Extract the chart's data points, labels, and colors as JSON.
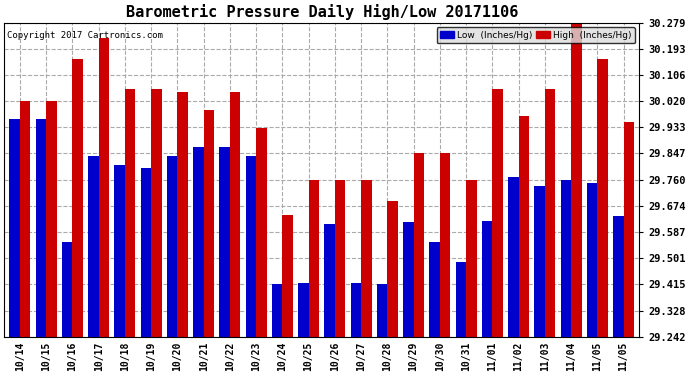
{
  "title": "Barometric Pressure Daily High/Low 20171106",
  "copyright": "Copyright 2017 Cartronics.com",
  "background_color": "#ffffff",
  "plot_bg_color": "#ffffff",
  "bar_color_low": "#0000cc",
  "bar_color_high": "#cc0000",
  "ymin": 29.242,
  "ymax": 30.279,
  "yticks": [
    29.242,
    29.328,
    29.415,
    29.501,
    29.587,
    29.674,
    29.76,
    29.847,
    29.933,
    30.02,
    30.106,
    30.193,
    30.279
  ],
  "dates": [
    "10/14",
    "10/15",
    "10/16",
    "10/17",
    "10/18",
    "10/19",
    "10/20",
    "10/21",
    "10/22",
    "10/23",
    "10/24",
    "10/25",
    "10/26",
    "10/27",
    "10/28",
    "10/29",
    "10/30",
    "10/31",
    "11/01",
    "11/02",
    "11/03",
    "11/04",
    "11/05",
    "11/05"
  ],
  "low_values": [
    29.96,
    29.96,
    29.556,
    29.84,
    29.81,
    29.8,
    29.84,
    29.87,
    29.87,
    29.84,
    29.415,
    29.42,
    29.615,
    29.42,
    29.415,
    29.62,
    29.556,
    29.49,
    29.625,
    29.77,
    29.74,
    29.76,
    29.75,
    29.64
  ],
  "high_values": [
    30.02,
    30.02,
    30.16,
    30.23,
    30.06,
    30.06,
    30.05,
    29.99,
    30.05,
    29.93,
    29.645,
    29.76,
    29.76,
    29.76,
    29.69,
    29.847,
    29.847,
    29.76,
    30.06,
    29.97,
    30.06,
    30.279,
    30.16,
    29.95
  ],
  "legend_low_label": "Low  (Inches/Hg)",
  "legend_high_label": "High  (Inches/Hg)"
}
